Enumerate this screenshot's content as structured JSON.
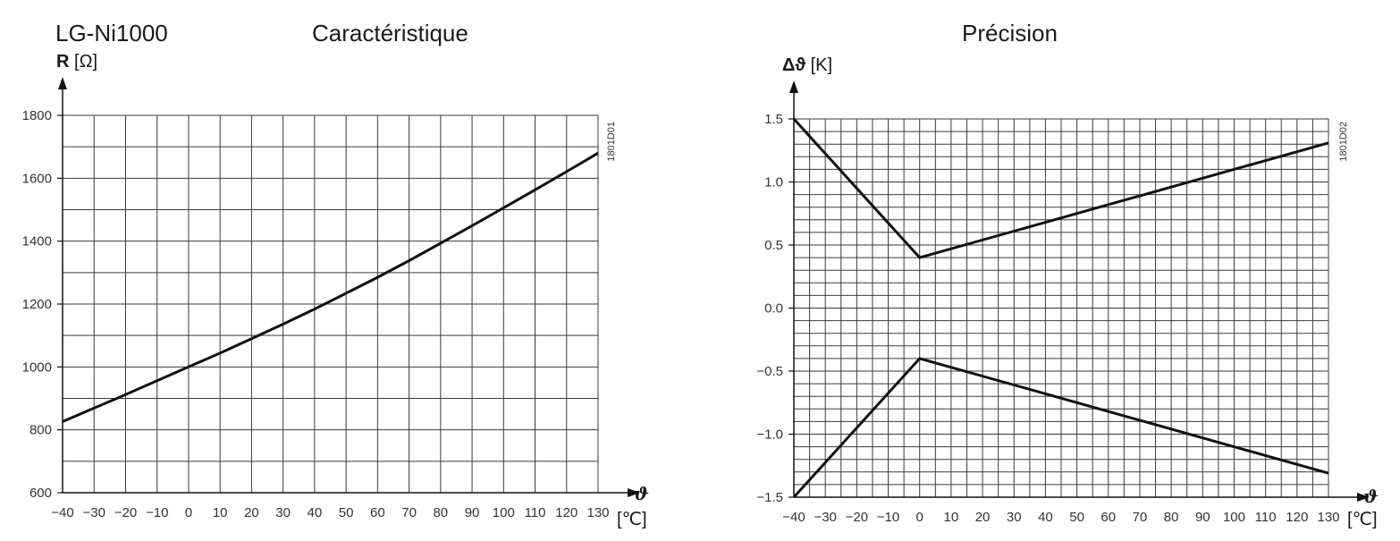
{
  "header": {
    "product": "LG-Ni1000",
    "left_title": "Caractéristique",
    "right_title": "Précision"
  },
  "chart_data": [
    {
      "type": "line",
      "title": "Caractéristique",
      "ylabel_symbol": "R",
      "ylabel_unit": "[Ω]",
      "xlabel_symbol": "ϑ",
      "xlabel_unit": "[℃]",
      "reference": "1801D01",
      "xlim": [
        -40,
        130
      ],
      "ylim": [
        600,
        1800
      ],
      "x_ticks": [
        "−40",
        "−30",
        "−20",
        "−10",
        "0",
        "10",
        "20",
        "30",
        "40",
        "50",
        "60",
        "70",
        "80",
        "90",
        "100",
        "110",
        "120",
        "130"
      ],
      "y_ticks": [
        "600",
        "800",
        "1000",
        "1200",
        "1400",
        "1600",
        "1800"
      ],
      "grid": true,
      "series": [
        {
          "x": [
            -40,
            -30,
            -20,
            -10,
            0,
            10,
            20,
            30,
            40,
            50,
            60,
            70,
            80,
            90,
            100,
            110,
            120,
            130
          ],
          "y": [
            826,
            869,
            912,
            956,
            1000,
            1044,
            1090,
            1136,
            1184,
            1234,
            1285,
            1338,
            1393,
            1449,
            1506,
            1563,
            1621,
            1680
          ]
        }
      ]
    },
    {
      "type": "line",
      "title": "Précision",
      "ylabel_symbol": "Δϑ",
      "ylabel_unit": "[K]",
      "xlabel_symbol": "ϑ",
      "xlabel_unit": "[℃]",
      "reference": "1801D02",
      "xlim": [
        -40,
        130
      ],
      "ylim": [
        -1.5,
        1.5
      ],
      "x_ticks": [
        "−40",
        "−30",
        "−20",
        "−10",
        "0",
        "10",
        "20",
        "30",
        "40",
        "50",
        "60",
        "70",
        "80",
        "90",
        "100",
        "110",
        "120",
        "130"
      ],
      "y_ticks": [
        "1.5",
        "1.0",
        "0.5",
        "0.0",
        "−0.5",
        "−1.0",
        "−1.5"
      ],
      "grid": true,
      "series": [
        {
          "x": [
            -40,
            0,
            130
          ],
          "y": [
            1.5,
            0.4,
            1.31
          ]
        },
        {
          "x": [
            -40,
            0,
            130
          ],
          "y": [
            -1.5,
            -0.4,
            -1.31
          ]
        }
      ]
    }
  ]
}
